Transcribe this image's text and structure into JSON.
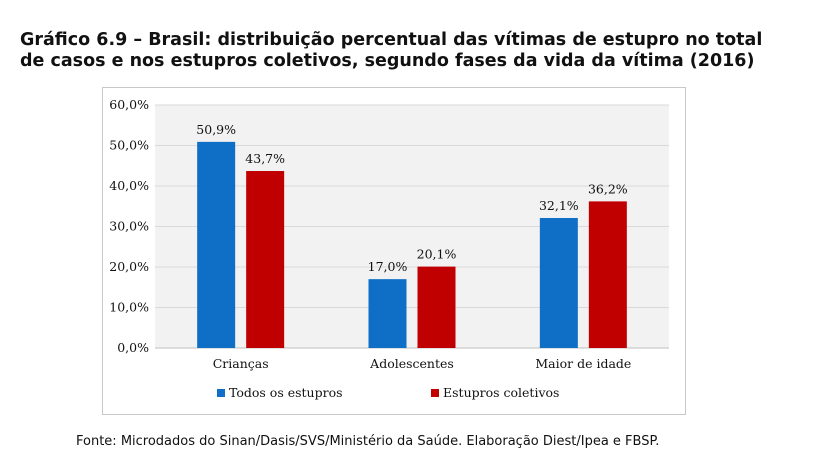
{
  "title": {
    "line1": "Gráfico 6.9 – Brasil: distribuição percentual das vítimas de estupro no total",
    "line2": "de casos e nos estupros coletivos, segundo fases da vida da vítima (2016)"
  },
  "source": "Fonte: Microdados do Sinan/Dasis/SVS/Ministério da Saúde. Elaboração Diest/Ipea e FBSP.",
  "colors": {
    "series1": "#0f6ec6",
    "series2": "#c00000",
    "plot_bg": "#f2f2f2",
    "grid": "#d9d9d9"
  },
  "chart_data": {
    "type": "bar",
    "categories": [
      "Crianças",
      "Adolescentes",
      "Maior de idade"
    ],
    "series": [
      {
        "name": "Todos os estupros",
        "values": [
          50.9,
          17.0,
          32.1
        ],
        "labels": [
          "50,9%",
          "17,0%",
          "32,1%"
        ]
      },
      {
        "name": "Estupros coletivos",
        "values": [
          43.7,
          20.1,
          36.2
        ],
        "labels": [
          "43,7%",
          "20,1%",
          "36,2%"
        ]
      }
    ],
    "ylim": [
      0,
      60
    ],
    "yticks": [
      "0,0%",
      "10,0%",
      "20,0%",
      "30,0%",
      "40,0%",
      "50,0%",
      "60,0%"
    ],
    "grid": true,
    "legend": "bottom"
  }
}
